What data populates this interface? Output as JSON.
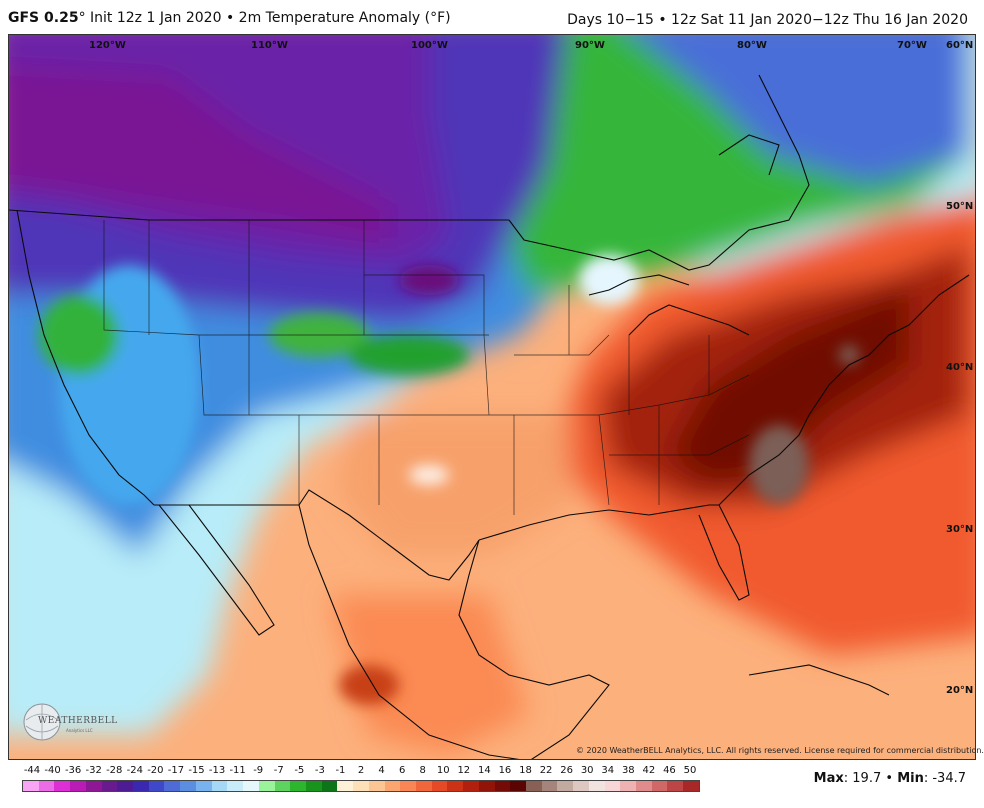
{
  "header": {
    "model": "GFS 0.25",
    "degree": "°",
    "init": "Init 12z 1 Jan 2020",
    "bullet": "•",
    "variable": "2m Temperature Anomaly (°F)",
    "right": "Days 10−15 • 12z Sat 11 Jan 2020−12z Thu 16 Jan 2020"
  },
  "map": {
    "longitude_labels": [
      "120°W",
      "110°W",
      "100°W",
      "90°W",
      "80°W",
      "70°W",
      "60°N"
    ],
    "latitude_labels": [
      "50°N",
      "40°N",
      "30°N",
      "20°N"
    ],
    "copyright": "© 2020 WeatherBELL Analytics, LLC. All rights reserved. License required for commercial distribution.",
    "logo": {
      "icon": "weatherbell-globe-icon",
      "text": "WEATHERBELL",
      "sub": "Analytics LLC"
    }
  },
  "colorbar": {
    "ticks": [
      "-44",
      "-40",
      "-36",
      "-32",
      "-28",
      "-24",
      "-20",
      "-17",
      "-15",
      "-13",
      "-11",
      "-9",
      "-7",
      "-5",
      "-3",
      "-1",
      "2",
      "4",
      "6",
      "8",
      "10",
      "12",
      "14",
      "16",
      "18",
      "22",
      "26",
      "30",
      "34",
      "38",
      "42",
      "46",
      "50"
    ],
    "colors": [
      "#f8a6f4",
      "#ec6ce6",
      "#dc2fd4",
      "#b91bb5",
      "#8e1796",
      "#6a1a8f",
      "#4d1c95",
      "#3b28b0",
      "#3e48c9",
      "#4f6bd6",
      "#5b8de0",
      "#79b3ef",
      "#a5d8f7",
      "#c9ecfb",
      "#e7f8fc",
      "#9af29b",
      "#5fd35f",
      "#2db52d",
      "#18941c",
      "#0e7418",
      "#fdf1d8",
      "#fde0b8",
      "#fcc594",
      "#fba671",
      "#f98654",
      "#f2663b",
      "#e34a25",
      "#cc3216",
      "#b0200d",
      "#921409",
      "#740b06",
      "#5a0503",
      "#886055",
      "#a5857b",
      "#c3aaa1",
      "#dcc8c1",
      "#f1e3df",
      "#f8d6d6",
      "#eeb2b2",
      "#e08c8c",
      "#d06868",
      "#bd4545",
      "#a82828"
    ],
    "max_label": "Max",
    "max_value": "19.7",
    "min_label": "Min",
    "min_value": "-34.7",
    "bullet": "•"
  }
}
